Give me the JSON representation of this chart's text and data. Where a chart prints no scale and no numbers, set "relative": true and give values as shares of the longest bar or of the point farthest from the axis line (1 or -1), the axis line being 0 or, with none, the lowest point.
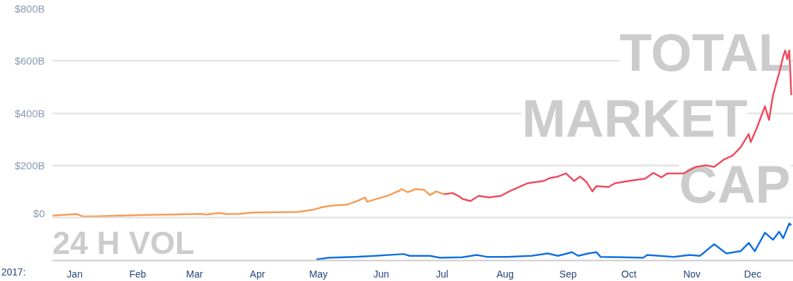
{
  "chart_data": [
    {
      "type": "line",
      "title": "TOTAL MARKET CAP",
      "xlim": [
        "2016-12-21",
        "2017-12-21"
      ],
      "ylim": [
        0,
        800
      ],
      "yticks": [
        {
          "value": 0,
          "label": "$0"
        },
        {
          "value": 200,
          "label": "$200B"
        },
        {
          "value": 400,
          "label": "$400B"
        },
        {
          "value": 600,
          "label": "$600B"
        },
        {
          "value": 800,
          "label": "$800B"
        }
      ],
      "grid": "y",
      "tick_labels": "y",
      "series": [
        {
          "color": "#f89a52",
          "x": [
            "2016-12-21",
            "2017-01-02",
            "2017-01-05",
            "2017-01-10",
            "2017-02-01",
            "2017-03-04",
            "2017-03-07",
            "2017-03-13",
            "2017-03-17",
            "2017-03-23",
            "2017-03-30",
            "2017-04-21",
            "2017-04-28",
            "2017-05-03",
            "2017-05-08",
            "2017-05-15",
            "2017-05-20",
            "2017-05-24",
            "2017-05-25",
            "2017-05-31",
            "2017-06-05",
            "2017-06-10",
            "2017-06-11",
            "2017-06-14",
            "2017-06-18",
            "2017-06-22",
            "2017-06-25",
            "2017-06-28",
            "2017-07-02"
          ],
          "values": [
            7,
            13,
            4,
            4,
            9,
            14,
            11,
            17,
            13,
            14,
            19,
            21,
            29,
            40,
            46,
            49,
            63,
            77,
            60,
            74,
            86,
            103,
            109,
            97,
            109,
            106,
            86,
            100,
            89
          ]
        },
        {
          "color": "#ef4a5c",
          "x": [
            "2017-07-02",
            "2017-07-06",
            "2017-07-09",
            "2017-07-11",
            "2017-07-15",
            "2017-07-19",
            "2017-07-24",
            "2017-07-30",
            "2017-08-03",
            "2017-08-08",
            "2017-08-12",
            "2017-08-20",
            "2017-08-23",
            "2017-08-27",
            "2017-08-31",
            "2017-09-04",
            "2017-09-07",
            "2017-09-10",
            "2017-09-13",
            "2017-09-15",
            "2017-09-21",
            "2017-09-24",
            "2017-10-01",
            "2017-10-09",
            "2017-10-13",
            "2017-10-17",
            "2017-10-20",
            "2017-10-28",
            "2017-11-03",
            "2017-11-08",
            "2017-11-12",
            "2017-11-17",
            "2017-11-21",
            "2017-11-25",
            "2017-11-29",
            "2017-11-30",
            "2017-12-03",
            "2017-12-07",
            "2017-12-09",
            "2017-12-11",
            "2017-12-14",
            "2017-12-16",
            "2017-12-17",
            "2017-12-18",
            "2017-12-19",
            "2017-12-20"
          ],
          "values": [
            89,
            94,
            83,
            71,
            63,
            83,
            77,
            83,
            100,
            117,
            131,
            140,
            151,
            157,
            169,
            140,
            157,
            137,
            100,
            120,
            117,
            131,
            140,
            149,
            171,
            154,
            169,
            169,
            194,
            200,
            194,
            223,
            237,
            269,
            320,
            289,
            343,
            426,
            374,
            469,
            554,
            617,
            640,
            606,
            640,
            469
          ]
        }
      ]
    },
    {
      "type": "line",
      "title": "24 H VOL",
      "relative": true,
      "annotations": [
        "2017:"
      ],
      "xlim": [
        "2016-12-21",
        "2017-12-21"
      ],
      "xticks": [
        {
          "value": "2017-01-01",
          "label": "Jan"
        },
        {
          "value": "2017-02-01",
          "label": "Feb"
        },
        {
          "value": "2017-03-01",
          "label": "Mar"
        },
        {
          "value": "2017-04-01",
          "label": "Apr"
        },
        {
          "value": "2017-05-01",
          "label": "May"
        },
        {
          "value": "2017-06-01",
          "label": "Jun"
        },
        {
          "value": "2017-07-01",
          "label": "Jul"
        },
        {
          "value": "2017-08-01",
          "label": "Aug"
        },
        {
          "value": "2017-09-01",
          "label": "Sep"
        },
        {
          "value": "2017-10-01",
          "label": "Oct"
        },
        {
          "value": "2017-11-01",
          "label": "Nov"
        },
        {
          "value": "2017-12-01",
          "label": "Dec"
        }
      ],
      "tick_labels": "x",
      "series": [
        {
          "color": "#0f6fe3",
          "x": [
            "2017-04-30",
            "2017-05-06",
            "2017-05-19",
            "2017-05-29",
            "2017-06-12",
            "2017-06-15",
            "2017-06-25",
            "2017-06-30",
            "2017-07-11",
            "2017-07-18",
            "2017-07-23",
            "2017-08-02",
            "2017-08-14",
            "2017-08-22",
            "2017-08-27",
            "2017-09-03",
            "2017-09-06",
            "2017-09-11",
            "2017-09-15",
            "2017-09-17",
            "2017-09-28",
            "2017-10-08",
            "2017-10-10",
            "2017-10-23",
            "2017-10-31",
            "2017-11-05",
            "2017-11-12",
            "2017-11-18",
            "2017-11-25",
            "2017-11-29",
            "2017-12-02",
            "2017-12-07",
            "2017-12-11",
            "2017-12-14",
            "2017-12-16",
            "2017-12-19",
            "2017-12-20"
          ],
          "values": [
            0.03,
            0.075,
            0.1,
            0.125,
            0.175,
            0.125,
            0.125,
            0.075,
            0.09,
            0.15,
            0.1,
            0.1,
            0.125,
            0.19,
            0.125,
            0.225,
            0.125,
            0.19,
            0.225,
            0.1,
            0.09,
            0.075,
            0.15,
            0.1,
            0.15,
            0.125,
            0.44,
            0.19,
            0.25,
            0.475,
            0.25,
            0.75,
            0.56,
            0.775,
            0.6,
            1.0,
            0.95
          ]
        }
      ]
    }
  ]
}
